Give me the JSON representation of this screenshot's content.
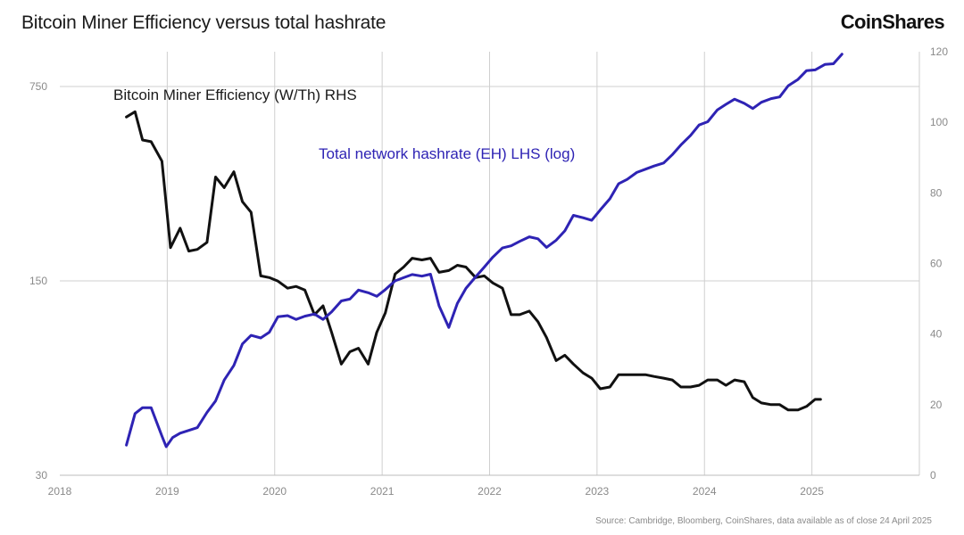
{
  "header": {
    "title": "Bitcoin Miner Efficiency versus total hashrate",
    "logo_text": "CoinShares"
  },
  "footer": {
    "source": "Source: Cambridge, Bloomberg, CoinShares, data available as of close 24 April 2025"
  },
  "chart_data": {
    "type": "line",
    "title": "Bitcoin Miner Efficiency versus total hashrate",
    "x_ticks": [
      "2018",
      "2019",
      "2020",
      "2021",
      "2022",
      "2023",
      "2024",
      "2025"
    ],
    "xlim": [
      2018.0,
      2026.0
    ],
    "left_axis": {
      "scale": "log",
      "ylim": [
        30,
        1000
      ],
      "ticks": [
        30,
        150,
        750
      ],
      "tick_labels": [
        "30",
        "150",
        "750"
      ]
    },
    "right_axis": {
      "scale": "linear",
      "ylim": [
        0,
        120
      ],
      "ticks": [
        0,
        20,
        40,
        60,
        80,
        100,
        120
      ],
      "tick_labels": [
        "0",
        "20",
        "40",
        "60",
        "80",
        "100",
        "120"
      ]
    },
    "grid": true,
    "series": [
      {
        "name": "Bitcoin Miner Efficiency (W/Th) RHS",
        "axis": "right",
        "color": "#111111",
        "points": [
          [
            2018.62,
            101.5
          ],
          [
            2018.7,
            103.0
          ],
          [
            2018.77,
            95.0
          ],
          [
            2018.85,
            94.5
          ],
          [
            2018.95,
            89.0
          ],
          [
            2019.03,
            64.5
          ],
          [
            2019.12,
            70.0
          ],
          [
            2019.2,
            63.5
          ],
          [
            2019.28,
            64.0
          ],
          [
            2019.37,
            66.0
          ],
          [
            2019.45,
            84.5
          ],
          [
            2019.53,
            81.5
          ],
          [
            2019.62,
            86.0
          ],
          [
            2019.7,
            77.5
          ],
          [
            2019.78,
            74.5
          ],
          [
            2019.87,
            56.5
          ],
          [
            2019.95,
            56.0
          ],
          [
            2020.03,
            55.0
          ],
          [
            2020.12,
            53.0
          ],
          [
            2020.2,
            53.5
          ],
          [
            2020.28,
            52.5
          ],
          [
            2020.37,
            45.5
          ],
          [
            2020.45,
            48.0
          ],
          [
            2020.53,
            40.5
          ],
          [
            2020.62,
            31.5
          ],
          [
            2020.7,
            35.0
          ],
          [
            2020.78,
            36.0
          ],
          [
            2020.87,
            31.5
          ],
          [
            2020.95,
            40.5
          ],
          [
            2021.03,
            46.0
          ],
          [
            2021.12,
            57.0
          ],
          [
            2021.2,
            59.0
          ],
          [
            2021.28,
            61.5
          ],
          [
            2021.37,
            61.0
          ],
          [
            2021.45,
            61.5
          ],
          [
            2021.53,
            57.5
          ],
          [
            2021.62,
            58.0
          ],
          [
            2021.7,
            59.5
          ],
          [
            2021.78,
            59.0
          ],
          [
            2021.87,
            56.0
          ],
          [
            2021.95,
            56.5
          ],
          [
            2022.03,
            54.5
          ],
          [
            2022.12,
            53.0
          ],
          [
            2022.2,
            45.5
          ],
          [
            2022.28,
            45.5
          ],
          [
            2022.37,
            46.5
          ],
          [
            2022.45,
            43.5
          ],
          [
            2022.53,
            39.0
          ],
          [
            2022.62,
            32.5
          ],
          [
            2022.7,
            34.0
          ],
          [
            2022.78,
            31.5
          ],
          [
            2022.87,
            29.0
          ],
          [
            2022.95,
            27.5
          ],
          [
            2023.03,
            24.5
          ],
          [
            2023.12,
            25.0
          ],
          [
            2023.2,
            28.5
          ],
          [
            2023.28,
            28.5
          ],
          [
            2023.37,
            28.5
          ],
          [
            2023.45,
            28.5
          ],
          [
            2023.53,
            28.0
          ],
          [
            2023.62,
            27.5
          ],
          [
            2023.7,
            27.0
          ],
          [
            2023.78,
            25.0
          ],
          [
            2023.87,
            25.0
          ],
          [
            2023.95,
            25.5
          ],
          [
            2024.03,
            27.0
          ],
          [
            2024.12,
            27.0
          ],
          [
            2024.2,
            25.5
          ],
          [
            2024.28,
            27.0
          ],
          [
            2024.37,
            26.5
          ],
          [
            2024.45,
            22.0
          ],
          [
            2024.53,
            20.5
          ],
          [
            2024.62,
            20.0
          ],
          [
            2024.7,
            20.0
          ],
          [
            2024.78,
            18.5
          ],
          [
            2024.87,
            18.5
          ],
          [
            2024.95,
            19.5
          ],
          [
            2025.03,
            21.5
          ],
          [
            2025.08,
            21.5
          ]
        ]
      },
      {
        "name": "Total network hashrate (EH) LHS (log)",
        "axis": "left",
        "color": "#2e23b4",
        "points": [
          [
            2018.62,
            38.5
          ],
          [
            2018.7,
            50
          ],
          [
            2018.77,
            52.5
          ],
          [
            2018.85,
            52.5
          ],
          [
            2018.95,
            41.5
          ],
          [
            2018.99,
            38
          ],
          [
            2019.05,
            41
          ],
          [
            2019.12,
            42.5
          ],
          [
            2019.2,
            43.5
          ],
          [
            2019.28,
            44.5
          ],
          [
            2019.37,
            50.5
          ],
          [
            2019.45,
            55.5
          ],
          [
            2019.53,
            66
          ],
          [
            2019.62,
            74.5
          ],
          [
            2019.7,
            89
          ],
          [
            2019.78,
            95.5
          ],
          [
            2019.87,
            93.5
          ],
          [
            2019.95,
            98
          ],
          [
            2020.03,
            111.5
          ],
          [
            2020.12,
            112.5
          ],
          [
            2020.2,
            109
          ],
          [
            2020.28,
            112
          ],
          [
            2020.37,
            114
          ],
          [
            2020.45,
            109
          ],
          [
            2020.53,
            116
          ],
          [
            2020.62,
            127
          ],
          [
            2020.7,
            129
          ],
          [
            2020.78,
            139
          ],
          [
            2020.87,
            136
          ],
          [
            2020.95,
            132
          ],
          [
            2021.03,
            139.5
          ],
          [
            2021.12,
            150
          ],
          [
            2021.2,
            154
          ],
          [
            2021.28,
            158
          ],
          [
            2021.37,
            156
          ],
          [
            2021.45,
            158.5
          ],
          [
            2021.53,
            122
          ],
          [
            2021.62,
            102
          ],
          [
            2021.7,
            124.5
          ],
          [
            2021.78,
            141
          ],
          [
            2021.87,
            155
          ],
          [
            2021.95,
            168
          ],
          [
            2022.03,
            182.5
          ],
          [
            2022.12,
            197
          ],
          [
            2022.2,
            200.5
          ],
          [
            2022.28,
            208
          ],
          [
            2022.37,
            216
          ],
          [
            2022.45,
            212.5
          ],
          [
            2022.53,
            198
          ],
          [
            2022.62,
            210
          ],
          [
            2022.7,
            227
          ],
          [
            2022.78,
            258
          ],
          [
            2022.87,
            253
          ],
          [
            2022.95,
            247.5
          ],
          [
            2023.03,
            270
          ],
          [
            2023.12,
            296
          ],
          [
            2023.2,
            335
          ],
          [
            2023.28,
            347.5
          ],
          [
            2023.37,
            368
          ],
          [
            2023.45,
            378
          ],
          [
            2023.53,
            388
          ],
          [
            2023.62,
            398
          ],
          [
            2023.7,
            426
          ],
          [
            2023.78,
            462
          ],
          [
            2023.87,
            500
          ],
          [
            2023.95,
            545
          ],
          [
            2024.03,
            560
          ],
          [
            2024.12,
            618
          ],
          [
            2024.2,
            647
          ],
          [
            2024.28,
            675
          ],
          [
            2024.37,
            652
          ],
          [
            2024.45,
            625
          ],
          [
            2024.53,
            658
          ],
          [
            2024.62,
            678
          ],
          [
            2024.7,
            688
          ],
          [
            2024.78,
            755
          ],
          [
            2024.87,
            795
          ],
          [
            2024.95,
            855
          ],
          [
            2025.03,
            860
          ],
          [
            2025.12,
            900
          ],
          [
            2025.2,
            905
          ],
          [
            2025.28,
            980
          ]
        ]
      }
    ],
    "annotations": [
      {
        "text": "Bitcoin Miner Efficiency (W/Th) RHS",
        "color": "#1a1a1a"
      },
      {
        "text": "Total network hashrate (EH) LHS (log)",
        "color": "#2e23b4"
      }
    ]
  }
}
